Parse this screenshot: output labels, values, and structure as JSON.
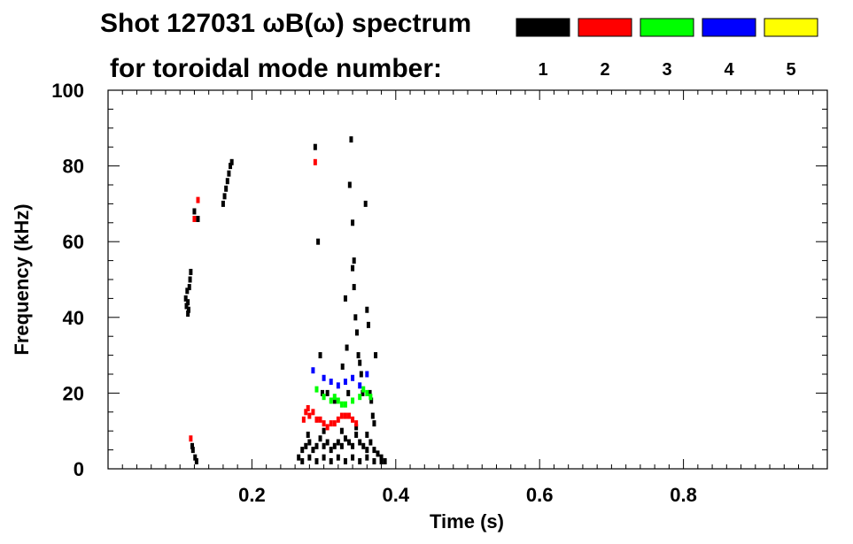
{
  "chart_data": {
    "type": "scatter",
    "title": "Shot 127031 ωB(ω) spectrum",
    "subtitle": "for toroidal mode number:",
    "xlabel": "Time (s)",
    "ylabel": "Frequency (kHz)",
    "xlim": [
      0,
      1
    ],
    "ylim": [
      0,
      100
    ],
    "x_ticks": [
      0.2,
      0.4,
      0.6,
      0.8
    ],
    "x_tick_labels": [
      "0.2",
      "0.4",
      "0.6",
      "0.8"
    ],
    "y_ticks": [
      0,
      20,
      40,
      60,
      80,
      100
    ],
    "y_tick_labels": [
      "0",
      "20",
      "40",
      "60",
      "80",
      "100"
    ],
    "x_minor_step": 0.02,
    "y_minor_step": 5,
    "grid": false,
    "legend_position": "top-right",
    "legend": [
      {
        "label": "1",
        "color": "#000000"
      },
      {
        "label": "2",
        "color": "#ff0000"
      },
      {
        "label": "3",
        "color": "#00ff00"
      },
      {
        "label": "4",
        "color": "#0000ff"
      },
      {
        "label": "5",
        "color": "#ffff00"
      }
    ],
    "series": [
      {
        "color": "#000000",
        "points": [
          [
            0.108,
            45
          ],
          [
            0.109,
            43
          ],
          [
            0.11,
            47
          ],
          [
            0.111,
            44
          ],
          [
            0.112,
            42
          ],
          [
            0.113,
            48
          ],
          [
            0.114,
            50
          ],
          [
            0.115,
            52
          ],
          [
            0.111,
            41
          ],
          [
            0.16,
            70
          ],
          [
            0.162,
            72
          ],
          [
            0.164,
            74
          ],
          [
            0.166,
            76
          ],
          [
            0.168,
            78
          ],
          [
            0.17,
            80
          ],
          [
            0.172,
            81
          ],
          [
            0.12,
            68
          ],
          [
            0.125,
            66
          ],
          [
            0.118,
            5
          ],
          [
            0.121,
            3
          ],
          [
            0.123,
            2
          ],
          [
            0.117,
            6
          ],
          [
            0.265,
            3
          ],
          [
            0.27,
            5
          ],
          [
            0.275,
            6
          ],
          [
            0.28,
            7
          ],
          [
            0.285,
            5
          ],
          [
            0.29,
            6
          ],
          [
            0.295,
            8
          ],
          [
            0.3,
            6
          ],
          [
            0.305,
            7
          ],
          [
            0.31,
            5
          ],
          [
            0.315,
            6
          ],
          [
            0.32,
            7
          ],
          [
            0.325,
            6
          ],
          [
            0.33,
            8
          ],
          [
            0.335,
            7
          ],
          [
            0.34,
            6
          ],
          [
            0.345,
            9
          ],
          [
            0.35,
            7
          ],
          [
            0.355,
            6
          ],
          [
            0.36,
            5
          ],
          [
            0.365,
            7
          ],
          [
            0.37,
            5
          ],
          [
            0.375,
            4
          ],
          [
            0.38,
            3
          ],
          [
            0.385,
            2
          ],
          [
            0.27,
            2
          ],
          [
            0.28,
            3
          ],
          [
            0.29,
            2
          ],
          [
            0.3,
            3
          ],
          [
            0.31,
            2
          ],
          [
            0.32,
            3
          ],
          [
            0.33,
            2
          ],
          [
            0.34,
            3
          ],
          [
            0.35,
            2
          ],
          [
            0.36,
            3
          ],
          [
            0.37,
            2
          ],
          [
            0.38,
            2
          ],
          [
            0.278,
            9
          ],
          [
            0.3,
            10
          ],
          [
            0.325,
            10
          ],
          [
            0.345,
            11
          ],
          [
            0.36,
            9
          ],
          [
            0.288,
            85
          ],
          [
            0.292,
            60
          ],
          [
            0.295,
            30
          ],
          [
            0.298,
            20
          ],
          [
            0.338,
            87
          ],
          [
            0.336,
            75
          ],
          [
            0.34,
            53
          ],
          [
            0.342,
            48
          ],
          [
            0.344,
            40
          ],
          [
            0.346,
            36
          ],
          [
            0.348,
            30
          ],
          [
            0.35,
            28
          ],
          [
            0.352,
            25
          ],
          [
            0.354,
            20
          ],
          [
            0.34,
            65
          ],
          [
            0.342,
            55
          ],
          [
            0.358,
            70
          ],
          [
            0.36,
            42
          ],
          [
            0.362,
            38
          ],
          [
            0.364,
            20
          ],
          [
            0.366,
            18
          ],
          [
            0.368,
            14
          ],
          [
            0.37,
            12
          ],
          [
            0.372,
            30
          ],
          [
            0.326,
            27
          ],
          [
            0.33,
            45
          ],
          [
            0.332,
            32
          ],
          [
            0.334,
            20
          ],
          [
            0.315,
            18
          ],
          [
            0.305,
            20
          ]
        ]
      },
      {
        "color": "#ff0000",
        "points": [
          [
            0.12,
            66
          ],
          [
            0.125,
            71
          ],
          [
            0.115,
            8
          ],
          [
            0.288,
            81
          ],
          [
            0.275,
            15
          ],
          [
            0.28,
            14
          ],
          [
            0.285,
            15
          ],
          [
            0.29,
            13
          ],
          [
            0.295,
            13
          ],
          [
            0.3,
            12
          ],
          [
            0.305,
            11
          ],
          [
            0.31,
            12
          ],
          [
            0.315,
            12
          ],
          [
            0.32,
            13
          ],
          [
            0.325,
            14
          ],
          [
            0.33,
            14
          ],
          [
            0.335,
            14
          ],
          [
            0.34,
            13
          ],
          [
            0.345,
            12
          ],
          [
            0.272,
            13
          ],
          [
            0.278,
            16
          ]
        ]
      },
      {
        "color": "#00ff00",
        "points": [
          [
            0.29,
            21
          ],
          [
            0.3,
            19
          ],
          [
            0.31,
            18
          ],
          [
            0.32,
            18
          ],
          [
            0.33,
            17
          ],
          [
            0.34,
            18
          ],
          [
            0.35,
            19
          ],
          [
            0.355,
            21
          ],
          [
            0.36,
            20
          ],
          [
            0.365,
            19
          ],
          [
            0.315,
            19
          ],
          [
            0.325,
            17
          ]
        ]
      },
      {
        "color": "#0000ff",
        "points": [
          [
            0.285,
            26
          ],
          [
            0.3,
            24
          ],
          [
            0.31,
            23
          ],
          [
            0.32,
            22
          ],
          [
            0.33,
            23
          ],
          [
            0.34,
            24
          ],
          [
            0.35,
            22
          ],
          [
            0.36,
            25
          ]
        ]
      }
    ]
  }
}
